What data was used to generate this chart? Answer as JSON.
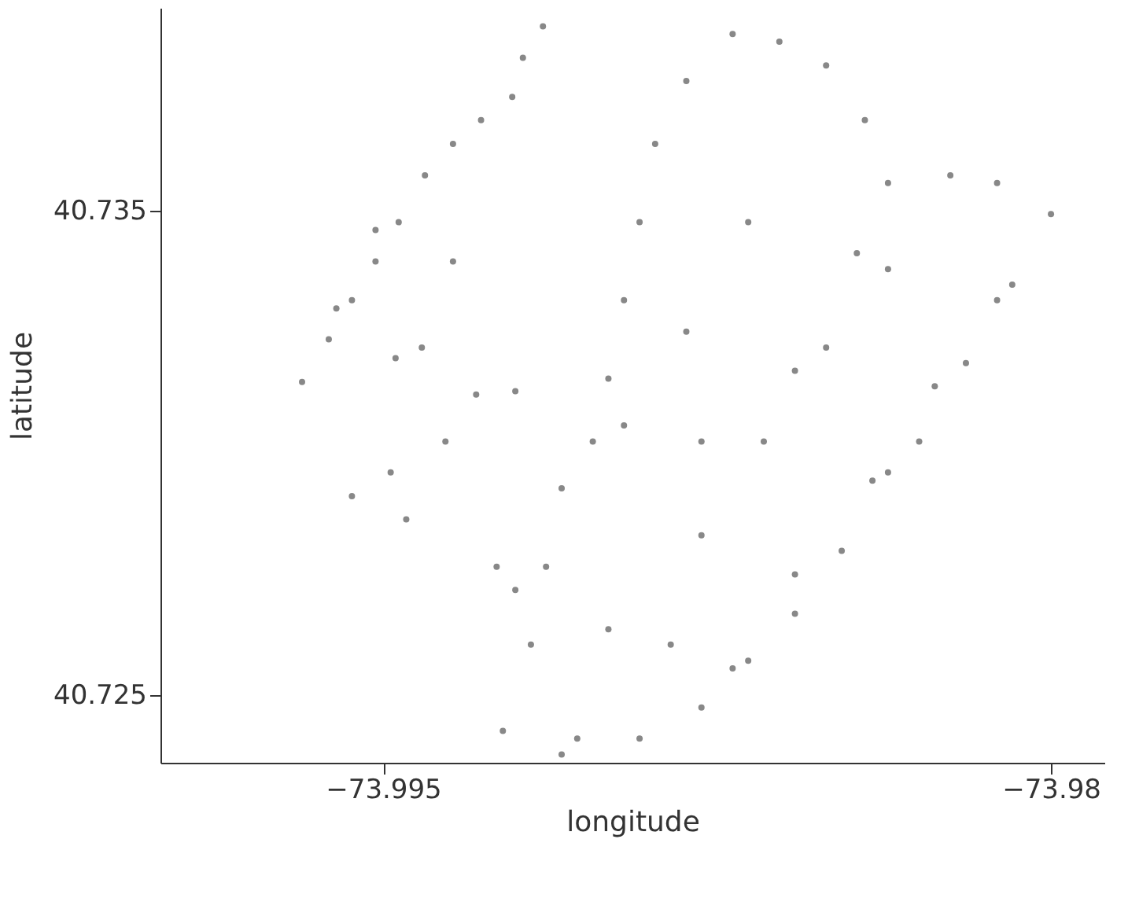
{
  "chart_data": {
    "type": "scatter",
    "xlabel": "longitude",
    "ylabel": "latitude",
    "xlim": [
      -74.0,
      -73.9788
    ],
    "ylim": [
      40.7236,
      40.7392
    ],
    "xticks": [
      {
        "value": -73.995,
        "label": "−73.995"
      },
      {
        "value": -73.98,
        "label": "−73.98"
      }
    ],
    "yticks": [
      40.735,
      40.725
    ],
    "grid": false,
    "series": [
      {
        "color": "#888888",
        "x": [
          -73.99682,
          -73.99622,
          -73.9957,
          -73.99517,
          -73.99465,
          -73.99406,
          -73.99343,
          -73.9928,
          -73.9921,
          -73.99141,
          -73.99186,
          -73.99605,
          -73.99413,
          -73.99517,
          -73.99343,
          -73.99472,
          -73.99203,
          -73.99231,
          -73.99099,
          -73.99168,
          -73.99134,
          -73.99099,
          -73.99029,
          -73.98994,
          -73.98959,
          -73.98924,
          -73.98889,
          -73.98819,
          -73.98715,
          -73.9861,
          -73.98505,
          -73.98418,
          -73.98366,
          -73.98226,
          -73.98121,
          -73.98,
          -73.98087,
          -73.98191,
          -73.98296,
          -73.98366,
          -73.9847,
          -73.98575,
          -73.9868,
          -73.98785,
          -73.98924,
          -73.99064,
          -73.99203,
          -73.98994,
          -73.98854,
          -73.98715,
          -73.98785,
          -73.98575,
          -73.98645,
          -73.98401,
          -73.98505,
          -73.98261,
          -73.98366,
          -73.98121,
          -73.9868,
          -73.98436,
          -73.98819,
          -73.98575,
          -73.98959,
          -73.98785,
          -73.9957,
          -73.99483,
          -73.99448,
          -73.99245,
          -73.9936,
          -73.99291
        ],
        "values": [
          40.73147,
          40.73235,
          40.73316,
          40.73396,
          40.73477,
          40.73574,
          40.73639,
          40.73688,
          40.73736,
          40.73882,
          40.73817,
          40.73299,
          40.73218,
          40.73461,
          40.73396,
          40.73196,
          40.73128,
          40.72426,
          40.72377,
          40.72604,
          40.72765,
          40.72927,
          40.73024,
          40.73154,
          40.73316,
          40.73477,
          40.73639,
          40.73769,
          40.73866,
          40.7385,
          40.73801,
          40.73688,
          40.73558,
          40.73574,
          40.73558,
          40.73494,
          40.73348,
          40.73186,
          40.73024,
          40.7296,
          40.72798,
          40.72668,
          40.72571,
          40.72474,
          40.7241,
          40.7241,
          40.72717,
          40.72636,
          40.72604,
          40.72555,
          40.7283,
          40.72749,
          40.73024,
          40.72943,
          40.73218,
          40.73138,
          40.7338,
          40.73316,
          40.73477,
          40.73413,
          40.73251,
          40.7317,
          40.73057,
          40.73024,
          40.72911,
          40.7296,
          40.72863,
          40.72765,
          40.73024,
          40.73121
        ]
      }
    ]
  }
}
